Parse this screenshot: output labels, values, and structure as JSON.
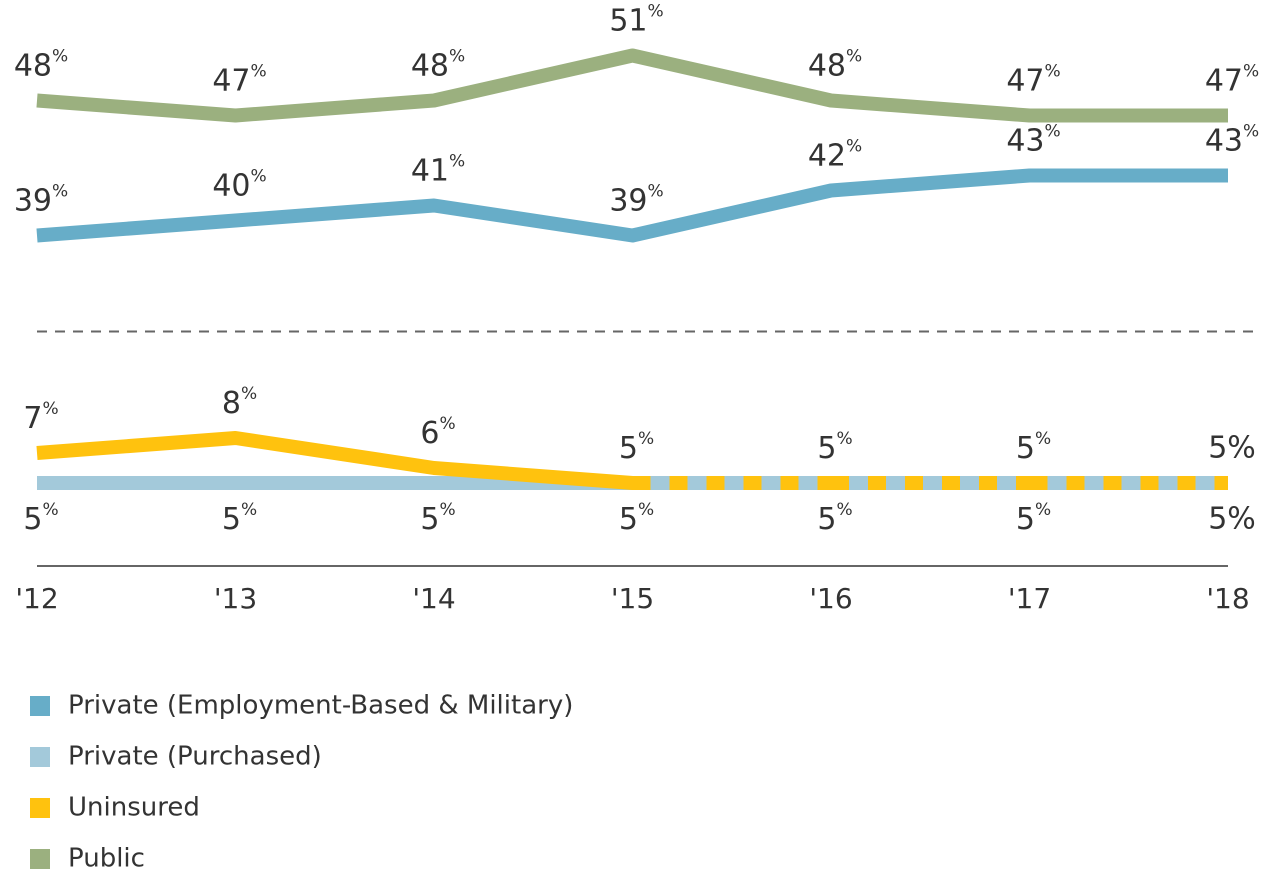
{
  "chart_data": {
    "type": "line",
    "categories": [
      "'12",
      "'13",
      "'14",
      "'15",
      "'16",
      "'17",
      "'18"
    ],
    "series": [
      {
        "name": "Private (Employment-Based & Military)",
        "color": "#67adc8",
        "values": [
          39,
          40,
          41,
          39,
          42,
          43,
          43
        ],
        "value_labels": [
          "39%",
          "40%",
          "41%",
          "39%",
          "42%",
          "43%",
          "43%"
        ],
        "label_side": "above"
      },
      {
        "name": "Private (Purchased)",
        "color": "#a3c9da",
        "values": [
          5,
          5,
          5,
          5,
          5,
          5,
          5
        ],
        "value_labels": [
          "5%",
          "5%",
          "5%",
          "5%",
          "5%",
          "5%",
          "5%"
        ],
        "label_side": "below"
      },
      {
        "name": "Uninsured",
        "color": "#ffc20e",
        "values": [
          7,
          8,
          6,
          5,
          5,
          5,
          5
        ],
        "value_labels": [
          "7%",
          "8%",
          "6%",
          "5%",
          "5%",
          "5%",
          "5%"
        ],
        "label_side": "above"
      },
      {
        "name": "Public",
        "color": "#9bb07f",
        "values": [
          48,
          47,
          48,
          51,
          48,
          47,
          47
        ],
        "value_labels": [
          "48%",
          "47%",
          "48%",
          "51%",
          "48%",
          "47%",
          "47%"
        ],
        "label_side": "above"
      }
    ],
    "ylim": [
      4,
      53
    ],
    "axis_break": [
      9.5,
      35
    ]
  }
}
